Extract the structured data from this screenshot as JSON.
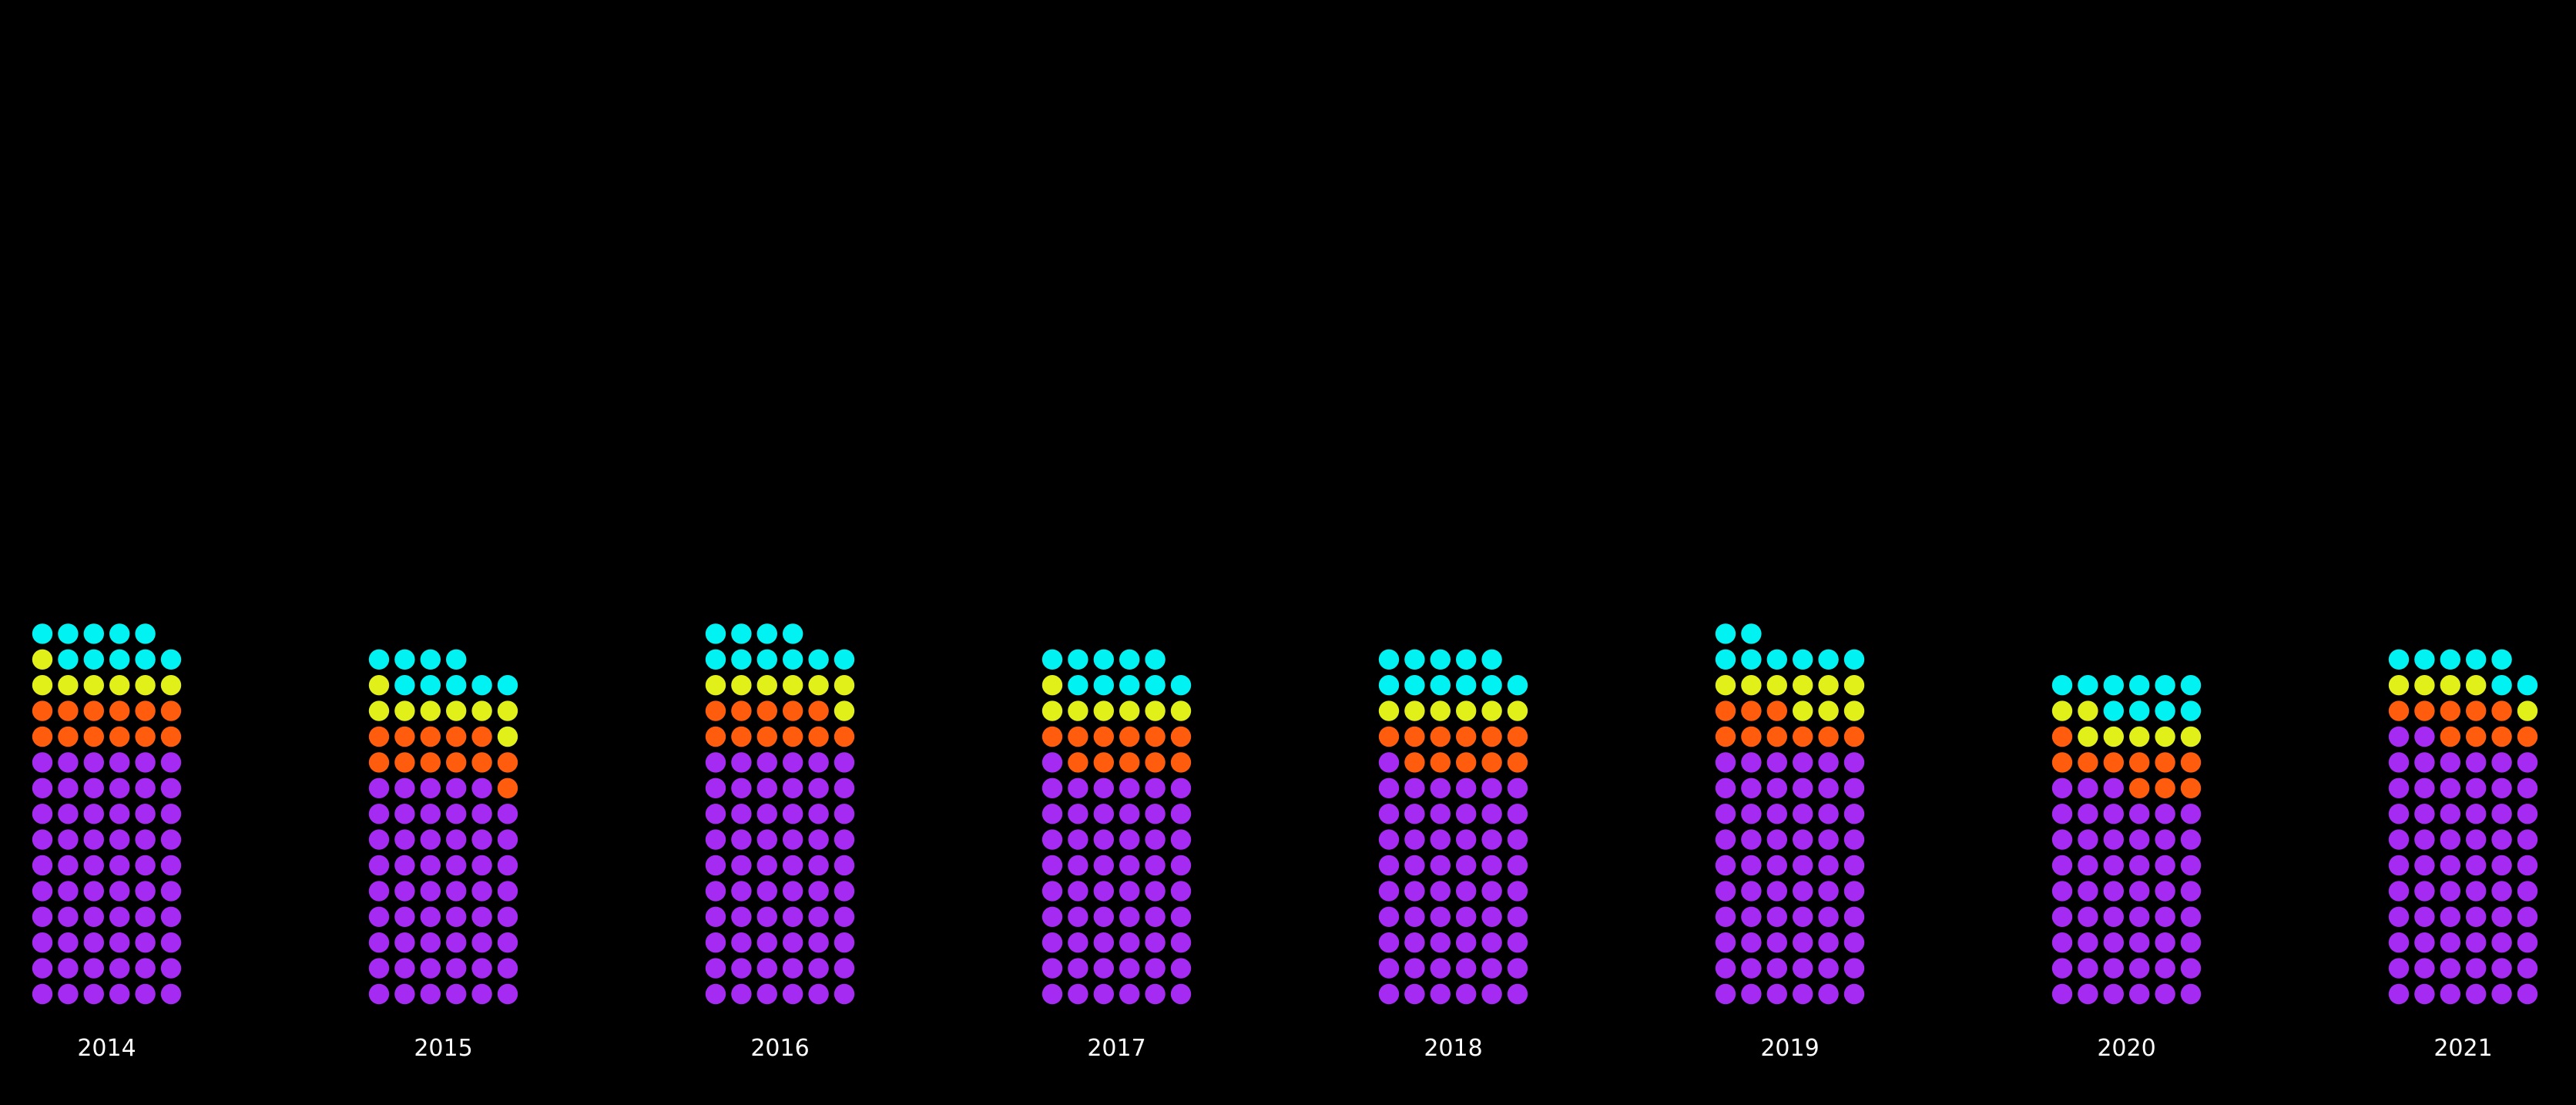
{
  "colors": {
    "background": "#000000",
    "label": "#ffffff"
  },
  "chart_data": {
    "type": "dot-stack",
    "title": "",
    "xlabel": "",
    "ylabel": "",
    "dots_per_row": 6,
    "stack_order": "bottom-up",
    "categories": [
      "2014",
      "2015",
      "2016",
      "2017",
      "2018",
      "2019",
      "2020",
      "2021"
    ],
    "series": [
      {
        "color": "#a52bf2",
        "values": [
          60,
          53,
          60,
          55,
          55,
          60,
          51,
          62
        ]
      },
      {
        "color": "#ff5c0d",
        "values": [
          12,
          12,
          11,
          11,
          11,
          9,
          10,
          9
        ]
      },
      {
        "color": "#e2f01a",
        "values": [
          7,
          8,
          7,
          7,
          6,
          9,
          7,
          5
        ]
      },
      {
        "color": "#00f2f2",
        "values": [
          10,
          9,
          10,
          10,
          11,
          8,
          10,
          7
        ]
      }
    ]
  }
}
